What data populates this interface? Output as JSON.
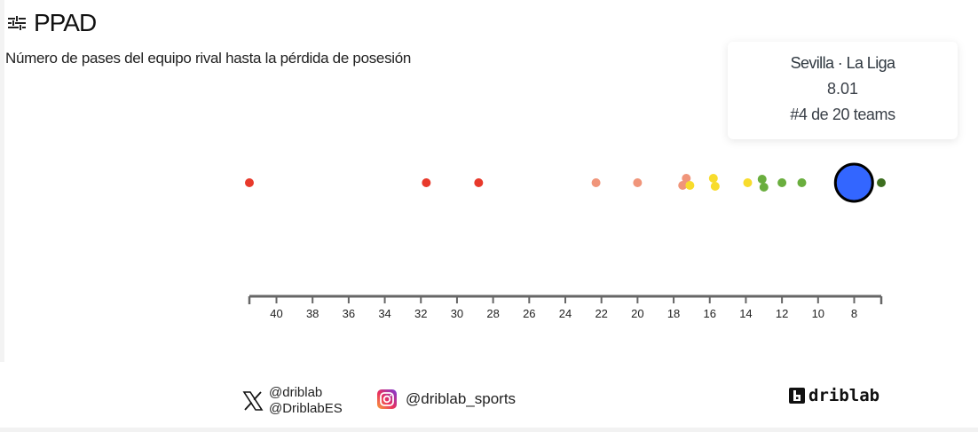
{
  "header": {
    "icon": "sliders-icon",
    "title": "PPAD",
    "subtitle": "Número de pases del equipo rival hasta la pérdida de posesión"
  },
  "tooltip": {
    "team_league": "Sevilla · La Liga",
    "value": "8.01",
    "rank": "#4 de 20 teams"
  },
  "footer": {
    "x_icon": "x-logo-icon",
    "x_handles": [
      "@driblab",
      "@DriblabES"
    ],
    "instagram_icon": "instagram-icon",
    "instagram_handle": "@driblab_sports",
    "brand": "driblab"
  },
  "colors": {
    "red": "#e8392b",
    "salmon": "#f0957a",
    "yellow": "#f8dc2c",
    "light_green": "#6aae3e",
    "dark_green": "#3d6e1f",
    "highlight": "#3366ff",
    "axis": "#666666"
  },
  "chart_data": {
    "type": "scatter",
    "title": "PPAD",
    "subtitle": "Número de pases del equipo rival hasta la pérdida de posesión",
    "xlabel": "",
    "ylabel": "",
    "x_reversed": true,
    "xlim": [
      41.5,
      6.5
    ],
    "xticks": [
      40,
      38,
      36,
      34,
      32,
      30,
      28,
      26,
      24,
      22,
      20,
      18,
      16,
      14,
      12,
      10,
      8
    ],
    "grid": false,
    "legend": null,
    "highlight": {
      "team": "Sevilla",
      "league": "La Liga",
      "value": 8.01,
      "rank": 4,
      "total": 20
    },
    "points": [
      {
        "value": 41.5,
        "color": "#e8392b",
        "dy": 0
      },
      {
        "value": 31.7,
        "color": "#e8392b",
        "dy": 0
      },
      {
        "value": 28.8,
        "color": "#e8392b",
        "dy": 0
      },
      {
        "value": 22.3,
        "color": "#f0957a",
        "dy": 0
      },
      {
        "value": 20.0,
        "color": "#f0957a",
        "dy": 0
      },
      {
        "value": 17.5,
        "color": "#f0957a",
        "dy": 3
      },
      {
        "value": 17.3,
        "color": "#f0957a",
        "dy": -5
      },
      {
        "value": 17.1,
        "color": "#f8dc2c",
        "dy": 3
      },
      {
        "value": 15.8,
        "color": "#f8dc2c",
        "dy": -5
      },
      {
        "value": 15.7,
        "color": "#f8dc2c",
        "dy": 4
      },
      {
        "value": 13.9,
        "color": "#f8dc2c",
        "dy": 0
      },
      {
        "value": 13.1,
        "color": "#6aae3e",
        "dy": -4
      },
      {
        "value": 13.0,
        "color": "#6aae3e",
        "dy": 5
      },
      {
        "value": 12.0,
        "color": "#6aae3e",
        "dy": 0
      },
      {
        "value": 10.9,
        "color": "#6aae3e",
        "dy": 0
      },
      {
        "value": 8.01,
        "color": "#3366ff",
        "dy": 0,
        "highlight": true
      },
      {
        "value": 6.5,
        "color": "#3d6e1f",
        "dy": 0
      }
    ]
  }
}
